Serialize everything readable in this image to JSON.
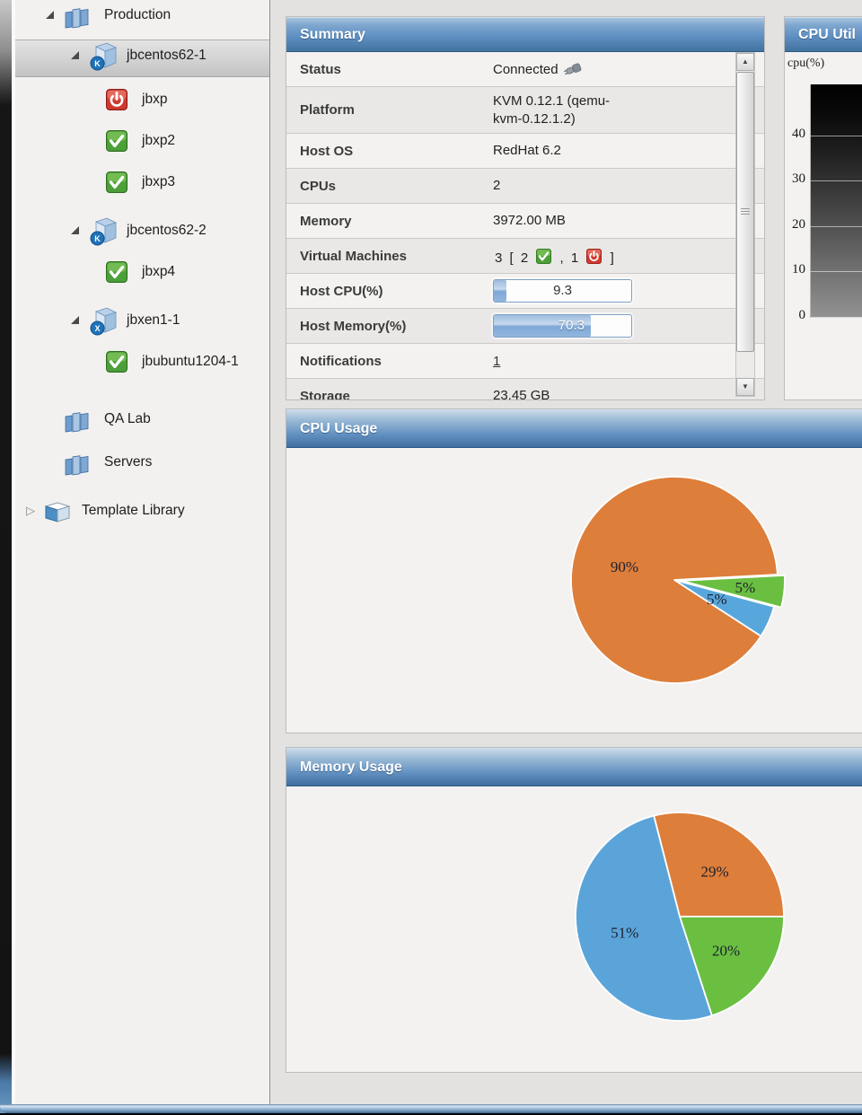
{
  "sidebar": {
    "tree": [
      {
        "label": "Production",
        "icon": "building",
        "expander": "expanded",
        "level": 1,
        "selected": false
      },
      {
        "label": "jbcentos62-1",
        "icon": "server",
        "badge": "K",
        "expander": "expanded",
        "level": 2,
        "selected": true
      },
      {
        "label": "jbxp",
        "icon": "vm-stopped",
        "level": 3,
        "selected": false
      },
      {
        "label": "jbxp2",
        "icon": "vm-running",
        "level": 3,
        "selected": false
      },
      {
        "label": "jbxp3",
        "icon": "vm-running",
        "level": 3,
        "selected": false
      },
      {
        "label": "jbcentos62-2",
        "icon": "server",
        "badge": "K",
        "expander": "expanded",
        "level": 2,
        "selected": false
      },
      {
        "label": "jbxp4",
        "icon": "vm-running",
        "level": 3,
        "selected": false
      },
      {
        "label": "jbxen1-1",
        "icon": "server",
        "badge": "X",
        "expander": "expanded",
        "level": 2,
        "selected": false
      },
      {
        "label": "jbubuntu1204-1",
        "icon": "vm-running",
        "level": 3,
        "selected": false
      },
      {
        "label": "QA Lab",
        "icon": "building",
        "level": 1,
        "selected": false
      },
      {
        "label": "Servers",
        "icon": "building",
        "level": 1,
        "selected": false
      },
      {
        "label": "Template Library",
        "icon": "template",
        "expander": "collapsed",
        "level": 0,
        "selected": false
      }
    ]
  },
  "summary": {
    "title": "Summary",
    "rows": [
      {
        "label": "Status",
        "type": "status",
        "value": "Connected",
        "icon": "plug"
      },
      {
        "label": "Platform",
        "type": "text",
        "value": "KVM 0.12.1 (qemu-kvm-0.12.1.2)"
      },
      {
        "label": "Host OS",
        "type": "text",
        "value": "RedHat 6.2"
      },
      {
        "label": "CPUs",
        "type": "text",
        "value": "2"
      },
      {
        "label": "Memory",
        "type": "text",
        "value": "3972.00 MB"
      },
      {
        "label": "Virtual Machines",
        "type": "vms",
        "total": "3",
        "bracket_open": "[",
        "running": "2",
        "separator": ",",
        "stopped": "1",
        "bracket_close": "]"
      },
      {
        "label": "Host CPU(%)",
        "type": "progress",
        "percent": 9.3,
        "display": "9.3"
      },
      {
        "label": "Host Memory(%)",
        "type": "progress",
        "percent": 70.3,
        "display": "70.3"
      },
      {
        "label": "Notifications",
        "type": "link",
        "value": "1"
      },
      {
        "label": "Storage",
        "type": "text",
        "value": "23.45 GB"
      }
    ]
  },
  "chart_data": [
    {
      "type": "line",
      "title": "CPU Util",
      "ylabel": "cpu(%)",
      "ylim": [
        0,
        51
      ],
      "yticks": [
        0,
        10,
        20,
        30,
        40
      ],
      "grid": true,
      "plot_background": "black-to-gray vertical gradient",
      "series": [],
      "note": "chart clipped at right screenshot edge; no data points visible"
    },
    {
      "type": "pie",
      "title": "CPU Usage",
      "start_angle_deg": -3,
      "label_color": "#1c2030",
      "slices": [
        {
          "label": "5%",
          "value": 5,
          "color": "#6abf41",
          "explode": 8,
          "label_r": 0.62
        },
        {
          "label": "5%",
          "value": 5,
          "color": "#58a7dc",
          "explode": 0,
          "label_r": 0.45
        },
        {
          "label": "90%",
          "value": 90,
          "color": "#dd7e3a",
          "explode": 0,
          "label_r": 0.5
        }
      ]
    },
    {
      "type": "pie",
      "title": "Memory Usage",
      "start_angle_deg": -104.4,
      "label_color": "#1c2030",
      "slices": [
        {
          "label": "29%",
          "value": 29,
          "color": "#dd7e3a",
          "explode": 0,
          "label_r": 0.55
        },
        {
          "label": "20%",
          "value": 20,
          "color": "#6abf41",
          "explode": 0,
          "label_r": 0.55
        },
        {
          "label": "51%",
          "value": 51,
          "color": "#5ba4d9",
          "explode": 0,
          "label_r": 0.55
        }
      ]
    }
  ]
}
